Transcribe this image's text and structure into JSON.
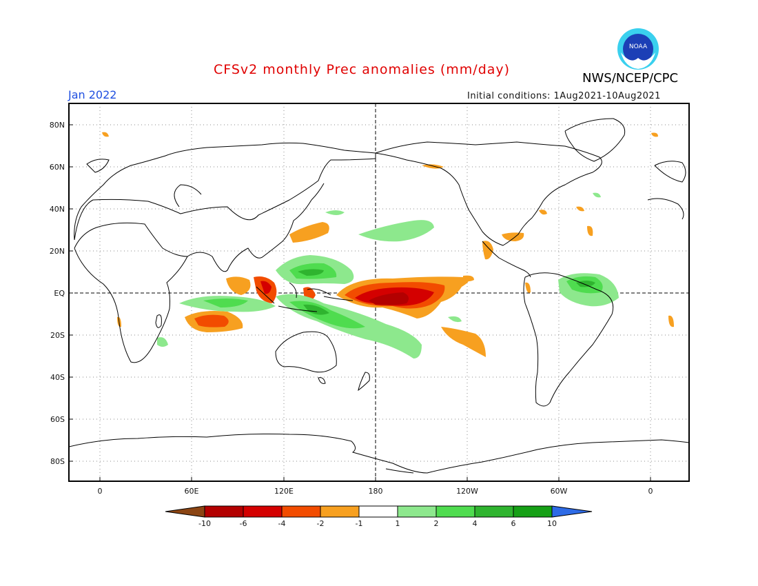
{
  "header": {
    "title": "CFSv2 monthly Prec anomalies (mm/day)",
    "agency": "NWS/NCEP/CPC",
    "month": "Jan 2022",
    "initial_conditions": "Initial conditions: 1Aug2021-10Aug2021",
    "logo_text": "NOAA"
  },
  "map": {
    "lat_labels": [
      "80N",
      "60N",
      "40N",
      "20N",
      "EQ",
      "20S",
      "40S",
      "60S",
      "80S"
    ],
    "lon_labels": [
      "0",
      "60E",
      "120E",
      "180",
      "120W",
      "60W",
      "0"
    ]
  },
  "colorbar": {
    "tick_labels": [
      "-10",
      "-6",
      "-4",
      "-2",
      "-1",
      "1",
      "2",
      "4",
      "6",
      "10"
    ],
    "colors": [
      "#8b4513",
      "#b30000",
      "#d40000",
      "#f24c00",
      "#f7a020",
      "#ffffff",
      "#8de88d",
      "#4fdc4f",
      "#2fb42f",
      "#16a016",
      "#2e6be6"
    ]
  }
}
